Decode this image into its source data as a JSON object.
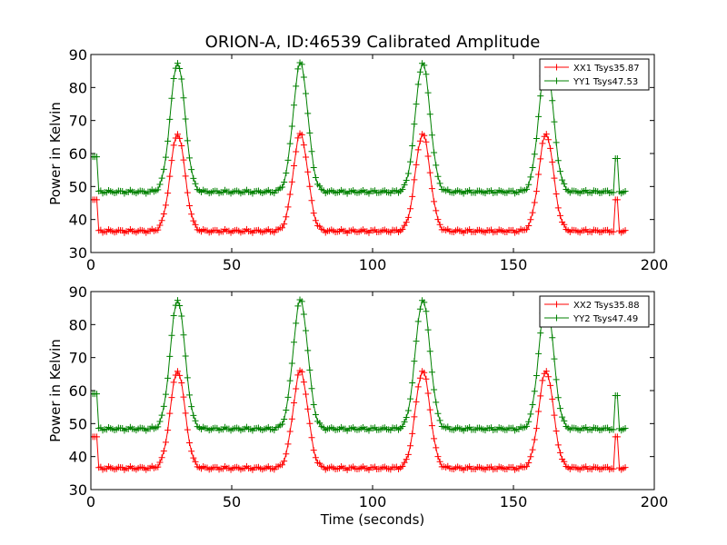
{
  "chart_data": [
    {
      "type": "line",
      "title": "ORION-A, ID:46539 Calibrated Amplitude",
      "xlabel": "",
      "ylabel": "Power in Kelvin",
      "xlim": [
        0,
        200
      ],
      "ylim": [
        30,
        90
      ],
      "x_ticks": [
        "0",
        "50",
        "100",
        "150",
        "200"
      ],
      "y_ticks": [
        "30",
        "40",
        "50",
        "60",
        "70",
        "80",
        "90"
      ],
      "legend_placement": "top-right",
      "grid": false,
      "marker": "+",
      "series": [
        {
          "name": "XX1 Tsys35.87",
          "color": "#ff0000",
          "baseline": 36.5,
          "peaks": [
            {
              "center": 30.8,
              "height": 66
            },
            {
              "center": 74.4,
              "height": 66
            },
            {
              "center": 117.8,
              "height": 66
            },
            {
              "center": 161.6,
              "height": 66
            }
          ],
          "steps": [
            {
              "x_start": 0,
              "x_end": 2.5,
              "value": 46
            },
            {
              "x_start": 185.5,
              "x_end": 187,
              "value": 46
            }
          ],
          "x_end": 190
        },
        {
          "name": "YY1 Tsys47.53",
          "color": "#008000",
          "baseline": 48.4,
          "peaks": [
            {
              "center": 30.8,
              "height": 87.5
            },
            {
              "center": 74.4,
              "height": 87.5
            },
            {
              "center": 117.8,
              "height": 87.5
            },
            {
              "center": 161.6,
              "height": 87.5
            }
          ],
          "steps": [
            {
              "x_start": 0,
              "x_end": 2.5,
              "value": 59
            },
            {
              "x_start": 185.5,
              "x_end": 187,
              "value": 58.5
            }
          ],
          "x_end": 190
        }
      ]
    },
    {
      "type": "line",
      "title": "",
      "xlabel": "Time (seconds)",
      "ylabel": "Power in Kelvin",
      "xlim": [
        0,
        200
      ],
      "ylim": [
        30,
        90
      ],
      "x_ticks": [
        "0",
        "50",
        "100",
        "150",
        "200"
      ],
      "y_ticks": [
        "30",
        "40",
        "50",
        "60",
        "70",
        "80",
        "90"
      ],
      "legend_placement": "top-right",
      "grid": false,
      "marker": "+",
      "series": [
        {
          "name": "XX2 Tsys35.88",
          "color": "#ff0000",
          "baseline": 36.5,
          "peaks": [
            {
              "center": 30.8,
              "height": 66
            },
            {
              "center": 74.4,
              "height": 66
            },
            {
              "center": 117.8,
              "height": 66
            },
            {
              "center": 161.6,
              "height": 66
            }
          ],
          "steps": [
            {
              "x_start": 0,
              "x_end": 2.5,
              "value": 46
            },
            {
              "x_start": 185.5,
              "x_end": 187,
              "value": 46
            }
          ],
          "x_end": 190
        },
        {
          "name": "YY2 Tsys47.49",
          "color": "#008000",
          "baseline": 48.4,
          "peaks": [
            {
              "center": 30.8,
              "height": 87.5
            },
            {
              "center": 74.4,
              "height": 87.5
            },
            {
              "center": 117.8,
              "height": 87.5
            },
            {
              "center": 161.6,
              "height": 87.5
            }
          ],
          "steps": [
            {
              "x_start": 0,
              "x_end": 2.5,
              "value": 59
            },
            {
              "x_start": 185.5,
              "x_end": 187,
              "value": 58.5
            }
          ],
          "x_end": 190
        }
      ]
    }
  ]
}
